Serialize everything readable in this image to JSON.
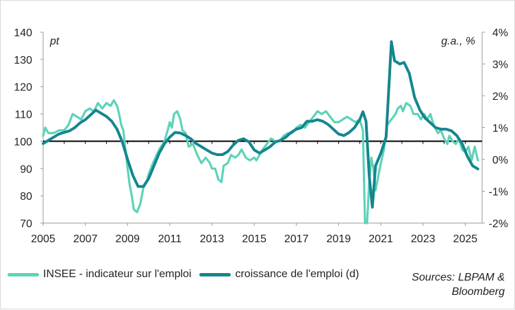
{
  "colors": {
    "insee": "#5dd3b8",
    "emploi": "#14868e",
    "zero_line": "#000000",
    "axis": "#999999"
  },
  "units": {
    "left": "pt",
    "right": "g.a., %"
  },
  "legend": {
    "insee": "INSEE - indicateur sur l'emploi",
    "emploi": "croissance de l'emploi (d)"
  },
  "source": "Sources: LBPAM & Bloomberg",
  "chart_data": {
    "type": "line",
    "title": "",
    "x_ticks": [
      "2005",
      "2007",
      "2009",
      "2011",
      "2013",
      "2015",
      "2017",
      "2019",
      "2021",
      "2023",
      "2025"
    ],
    "x_range": [
      2005,
      2025.8
    ],
    "y_left": {
      "range": [
        70,
        140
      ],
      "ticks": [
        "70",
        "80",
        "90",
        "100",
        "110",
        "120",
        "130",
        "140"
      ]
    },
    "y_right": {
      "range": [
        -2,
        4
      ],
      "ticks": [
        "-2%",
        "-1%",
        "0%",
        "1%",
        "2%",
        "3%",
        "4%"
      ]
    },
    "series": [
      {
        "name": "INSEE - indicateur sur l'emploi",
        "axis": "left",
        "points": [
          [
            2005.0,
            102
          ],
          [
            2005.1,
            105
          ],
          [
            2005.25,
            103
          ],
          [
            2005.5,
            103
          ],
          [
            2005.75,
            104
          ],
          [
            2006.0,
            104
          ],
          [
            2006.2,
            106
          ],
          [
            2006.4,
            110
          ],
          [
            2006.6,
            109
          ],
          [
            2006.8,
            108
          ],
          [
            2007.0,
            111
          ],
          [
            2007.2,
            112
          ],
          [
            2007.4,
            111
          ],
          [
            2007.6,
            114
          ],
          [
            2007.8,
            112
          ],
          [
            2008.0,
            114
          ],
          [
            2008.2,
            113
          ],
          [
            2008.35,
            115
          ],
          [
            2008.5,
            113
          ],
          [
            2008.6,
            110
          ],
          [
            2008.7,
            106
          ],
          [
            2008.8,
            104
          ],
          [
            2008.9,
            97
          ],
          [
            2009.0,
            90
          ],
          [
            2009.1,
            84
          ],
          [
            2009.2,
            80
          ],
          [
            2009.3,
            75
          ],
          [
            2009.45,
            74
          ],
          [
            2009.6,
            77
          ],
          [
            2009.75,
            83
          ],
          [
            2009.9,
            85
          ],
          [
            2010.0,
            88
          ],
          [
            2010.2,
            92
          ],
          [
            2010.5,
            97
          ],
          [
            2010.75,
            100
          ],
          [
            2010.9,
            104
          ],
          [
            2011.0,
            107
          ],
          [
            2011.1,
            105
          ],
          [
            2011.2,
            110
          ],
          [
            2011.35,
            111
          ],
          [
            2011.5,
            108
          ],
          [
            2011.6,
            104
          ],
          [
            2011.75,
            103
          ],
          [
            2011.9,
            98
          ],
          [
            2012.1,
            99
          ],
          [
            2012.3,
            95
          ],
          [
            2012.5,
            92
          ],
          [
            2012.7,
            94
          ],
          [
            2012.9,
            92
          ],
          [
            2013.0,
            90
          ],
          [
            2013.15,
            90
          ],
          [
            2013.3,
            86
          ],
          [
            2013.45,
            85
          ],
          [
            2013.55,
            91
          ],
          [
            2013.75,
            92
          ],
          [
            2013.9,
            95
          ],
          [
            2014.1,
            94
          ],
          [
            2014.25,
            95
          ],
          [
            2014.4,
            97
          ],
          [
            2014.6,
            94
          ],
          [
            2014.8,
            93
          ],
          [
            2015.0,
            94
          ],
          [
            2015.1,
            93
          ],
          [
            2015.25,
            95
          ],
          [
            2015.4,
            97
          ],
          [
            2015.6,
            99
          ],
          [
            2015.8,
            101
          ],
          [
            2016.0,
            100
          ],
          [
            2016.2,
            100
          ],
          [
            2016.4,
            102
          ],
          [
            2016.6,
            103
          ],
          [
            2016.8,
            103
          ],
          [
            2017.0,
            105
          ],
          [
            2017.2,
            106
          ],
          [
            2017.4,
            105
          ],
          [
            2017.6,
            107
          ],
          [
            2017.8,
            109
          ],
          [
            2018.0,
            111
          ],
          [
            2018.2,
            110
          ],
          [
            2018.4,
            111
          ],
          [
            2018.6,
            109
          ],
          [
            2018.8,
            107
          ],
          [
            2019.0,
            107
          ],
          [
            2019.2,
            108
          ],
          [
            2019.4,
            109
          ],
          [
            2019.6,
            108
          ],
          [
            2019.8,
            107
          ],
          [
            2020.0,
            108
          ],
          [
            2020.15,
            104
          ],
          [
            2020.25,
            70
          ],
          [
            2020.35,
            70
          ],
          [
            2020.45,
            85
          ],
          [
            2020.55,
            94
          ],
          [
            2020.65,
            90
          ],
          [
            2020.75,
            82
          ],
          [
            2020.9,
            88
          ],
          [
            2021.0,
            92
          ],
          [
            2021.15,
            97
          ],
          [
            2021.3,
            106
          ],
          [
            2021.5,
            108
          ],
          [
            2021.7,
            110
          ],
          [
            2021.8,
            112
          ],
          [
            2021.95,
            113
          ],
          [
            2022.05,
            111
          ],
          [
            2022.2,
            114
          ],
          [
            2022.4,
            113
          ],
          [
            2022.55,
            110
          ],
          [
            2022.75,
            110
          ],
          [
            2022.9,
            108
          ],
          [
            2023.05,
            110
          ],
          [
            2023.2,
            108
          ],
          [
            2023.35,
            110
          ],
          [
            2023.5,
            106
          ],
          [
            2023.7,
            103
          ],
          [
            2023.85,
            104
          ],
          [
            2024.0,
            101
          ],
          [
            2024.15,
            99
          ],
          [
            2024.25,
            102
          ],
          [
            2024.4,
            100
          ],
          [
            2024.55,
            99
          ],
          [
            2024.7,
            101
          ],
          [
            2024.85,
            97
          ],
          [
            2025.0,
            96
          ],
          [
            2025.15,
            98
          ],
          [
            2025.3,
            93
          ],
          [
            2025.45,
            98
          ],
          [
            2025.6,
            93
          ]
        ]
      },
      {
        "name": "croissance de l'emploi (d)",
        "axis": "right",
        "points": [
          [
            2005.0,
            0.5
          ],
          [
            2005.25,
            0.6
          ],
          [
            2005.5,
            0.7
          ],
          [
            2005.75,
            0.8
          ],
          [
            2006.0,
            0.85
          ],
          [
            2006.25,
            0.9
          ],
          [
            2006.5,
            1.0
          ],
          [
            2006.75,
            1.15
          ],
          [
            2007.0,
            1.25
          ],
          [
            2007.25,
            1.4
          ],
          [
            2007.5,
            1.55
          ],
          [
            2007.75,
            1.45
          ],
          [
            2008.0,
            1.35
          ],
          [
            2008.25,
            1.2
          ],
          [
            2008.5,
            0.95
          ],
          [
            2008.75,
            0.55
          ],
          [
            2009.0,
            0.0
          ],
          [
            2009.25,
            -0.5
          ],
          [
            2009.5,
            -0.85
          ],
          [
            2009.75,
            -0.85
          ],
          [
            2010.0,
            -0.6
          ],
          [
            2010.25,
            -0.2
          ],
          [
            2010.5,
            0.2
          ],
          [
            2010.75,
            0.5
          ],
          [
            2011.0,
            0.7
          ],
          [
            2011.25,
            0.85
          ],
          [
            2011.5,
            0.83
          ],
          [
            2011.75,
            0.75
          ],
          [
            2012.0,
            0.65
          ],
          [
            2012.25,
            0.5
          ],
          [
            2012.5,
            0.4
          ],
          [
            2012.75,
            0.3
          ],
          [
            2013.0,
            0.2
          ],
          [
            2013.25,
            0.15
          ],
          [
            2013.5,
            0.15
          ],
          [
            2013.75,
            0.25
          ],
          [
            2014.0,
            0.45
          ],
          [
            2014.25,
            0.6
          ],
          [
            2014.5,
            0.65
          ],
          [
            2014.75,
            0.55
          ],
          [
            2015.0,
            0.3
          ],
          [
            2015.25,
            0.2
          ],
          [
            2015.5,
            0.3
          ],
          [
            2015.75,
            0.4
          ],
          [
            2016.0,
            0.55
          ],
          [
            2016.25,
            0.6
          ],
          [
            2016.5,
            0.7
          ],
          [
            2016.75,
            0.85
          ],
          [
            2017.0,
            0.95
          ],
          [
            2017.25,
            1.0
          ],
          [
            2017.5,
            1.2
          ],
          [
            2017.75,
            1.2
          ],
          [
            2018.0,
            1.25
          ],
          [
            2018.25,
            1.2
          ],
          [
            2018.5,
            1.1
          ],
          [
            2018.75,
            0.95
          ],
          [
            2019.0,
            0.8
          ],
          [
            2019.25,
            0.75
          ],
          [
            2019.5,
            0.85
          ],
          [
            2019.75,
            1.0
          ],
          [
            2020.0,
            1.25
          ],
          [
            2020.15,
            1.5
          ],
          [
            2020.3,
            1.2
          ],
          [
            2020.45,
            -0.5
          ],
          [
            2020.6,
            -1.5
          ],
          [
            2020.75,
            -0.2
          ],
          [
            2021.0,
            0.2
          ],
          [
            2021.25,
            0.7
          ],
          [
            2021.5,
            3.7
          ],
          [
            2021.65,
            3.1
          ],
          [
            2021.9,
            3.0
          ],
          [
            2022.1,
            3.05
          ],
          [
            2022.35,
            2.7
          ],
          [
            2022.6,
            1.95
          ],
          [
            2022.85,
            1.55
          ],
          [
            2023.1,
            1.3
          ],
          [
            2023.35,
            1.15
          ],
          [
            2023.6,
            1.0
          ],
          [
            2023.85,
            0.95
          ],
          [
            2024.1,
            0.95
          ],
          [
            2024.35,
            0.9
          ],
          [
            2024.6,
            0.75
          ],
          [
            2024.85,
            0.5
          ],
          [
            2025.1,
            0.1
          ],
          [
            2025.35,
            -0.2
          ],
          [
            2025.6,
            -0.3
          ]
        ]
      }
    ]
  }
}
